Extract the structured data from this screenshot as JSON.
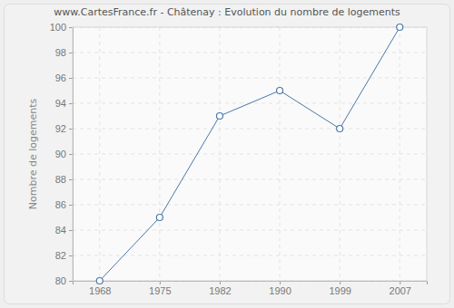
{
  "chart_data": {
    "type": "line",
    "title": "www.CartesFrance.fr - Châtenay : Evolution du nombre de logements",
    "y_label": "Nombre de logements",
    "categories": [
      "1968",
      "1975",
      "1982",
      "1990",
      "1999",
      "2007"
    ],
    "values": [
      80,
      85,
      93,
      95,
      92,
      100
    ],
    "color": "#4a78a8",
    "marker": "circle",
    "ylim": [
      80,
      100
    ],
    "yticks": [
      80,
      82,
      84,
      86,
      88,
      90,
      92,
      94,
      96,
      98,
      100
    ],
    "grid": true
  }
}
